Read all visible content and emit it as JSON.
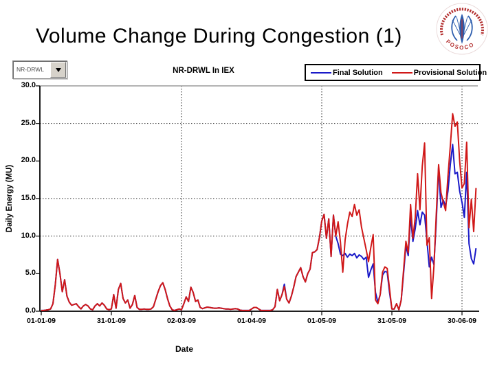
{
  "slide": {
    "title": "Volume Change During Congestion (1)"
  },
  "logo": {
    "name": "posoco-logo",
    "bottom_text": "POSOCO",
    "red": "#b43232",
    "blue": "#2b5cad"
  },
  "controls": {
    "dropdown_value": "NR-DRWL"
  },
  "chart_data": {
    "type": "line",
    "title": "NR-DRWL In IEX",
    "xlabel": "Date",
    "ylabel": "Daily Energy (MU)",
    "ylim": [
      0,
      30
    ],
    "y_ticks": [
      0,
      5,
      10,
      15,
      20,
      25,
      30
    ],
    "x_tick_labels": [
      "01-01-09",
      "31-01-09",
      "02-03-09",
      "01-04-09",
      "01-05-09",
      "31-05-09",
      "30-06-09"
    ],
    "x_tick_days": [
      0,
      30,
      60,
      90,
      120,
      150,
      180
    ],
    "x_range_days": [
      0,
      186
    ],
    "grid": "partial-dotted",
    "h_gridlines_at": [
      10,
      15,
      25
    ],
    "v_gridlines_at_days": [
      60,
      120,
      180
    ],
    "legend_position": "top-right",
    "series": [
      {
        "name": "Final Solution",
        "color": "#1a1ac8",
        "values": [
          0.1,
          0.1,
          0.15,
          0.2,
          0.3,
          1.0,
          3.5,
          6.9,
          5.0,
          2.6,
          4.2,
          2.0,
          1.2,
          0.8,
          0.9,
          1.0,
          0.6,
          0.3,
          0.7,
          0.9,
          0.7,
          0.3,
          0.2,
          0.7,
          1.0,
          0.7,
          1.1,
          0.8,
          0.3,
          0.2,
          0.3,
          2.2,
          0.4,
          2.9,
          3.7,
          1.7,
          1.1,
          1.5,
          0.4,
          0.9,
          2.1,
          0.5,
          0.25,
          0.25,
          0.3,
          0.25,
          0.25,
          0.3,
          0.6,
          1.6,
          2.6,
          3.4,
          3.8,
          2.9,
          1.7,
          0.7,
          0.2,
          0.1,
          0.2,
          0.3,
          0.2,
          1.0,
          1.9,
          1.3,
          3.2,
          2.5,
          1.3,
          1.5,
          0.5,
          0.35,
          0.45,
          0.55,
          0.5,
          0.45,
          0.4,
          0.4,
          0.45,
          0.4,
          0.35,
          0.3,
          0.3,
          0.25,
          0.3,
          0.35,
          0.3,
          0.15,
          0.1,
          0.1,
          0.1,
          0.1,
          0.3,
          0.5,
          0.5,
          0.3,
          0.1,
          0.1,
          0.1,
          0.1,
          0.1,
          0.2,
          0.6,
          2.9,
          1.4,
          2.2,
          3.6,
          1.6,
          1.1,
          2.0,
          3.2,
          4.6,
          5.2,
          5.8,
          4.6,
          3.9,
          5.0,
          5.6,
          7.8,
          7.9,
          8.2,
          9.8,
          12.0,
          12.9,
          9.7,
          12.3,
          7.3,
          12.8,
          10.0,
          9.0,
          7.6,
          7.4,
          7.7,
          7.2,
          7.6,
          7.4,
          7.7,
          7.1,
          7.5,
          7.3,
          6.9,
          7.2,
          4.5,
          5.5,
          6.3,
          2.5,
          1.2,
          2.2,
          4.8,
          5.3,
          5.2,
          2.5,
          0.3,
          0.3,
          1.0,
          0.2,
          1.5,
          5.0,
          8.7,
          7.4,
          12.6,
          9.3,
          11.0,
          13.4,
          11.5,
          13.2,
          12.8,
          9.4,
          5.9,
          7.2,
          6.2,
          12.0,
          19.2,
          13.8,
          14.8,
          14.0,
          16.0,
          19.5,
          22.2,
          18.3,
          18.5,
          16.0,
          14.5,
          12.5,
          18.5,
          9.0,
          7.0,
          6.3,
          8.4
        ]
      },
      {
        "name": "Provisional Solution",
        "color": "#d01818",
        "values": [
          0.1,
          0.1,
          0.15,
          0.2,
          0.3,
          1.0,
          3.5,
          6.9,
          5.0,
          2.6,
          4.2,
          2.0,
          1.2,
          0.8,
          0.9,
          1.0,
          0.6,
          0.3,
          0.7,
          0.9,
          0.7,
          0.3,
          0.2,
          0.7,
          1.0,
          0.7,
          1.1,
          0.8,
          0.3,
          0.2,
          0.3,
          2.2,
          0.4,
          2.9,
          3.7,
          1.7,
          1.1,
          1.5,
          0.4,
          0.9,
          2.1,
          0.5,
          0.25,
          0.25,
          0.3,
          0.25,
          0.25,
          0.3,
          0.6,
          1.6,
          2.6,
          3.4,
          3.8,
          2.9,
          1.7,
          0.7,
          0.2,
          0.1,
          0.2,
          0.3,
          0.2,
          1.0,
          1.9,
          1.3,
          3.2,
          2.5,
          1.3,
          1.5,
          0.5,
          0.35,
          0.45,
          0.55,
          0.5,
          0.45,
          0.4,
          0.4,
          0.45,
          0.4,
          0.35,
          0.3,
          0.3,
          0.25,
          0.3,
          0.35,
          0.3,
          0.15,
          0.1,
          0.1,
          0.1,
          0.1,
          0.3,
          0.5,
          0.5,
          0.3,
          0.1,
          0.1,
          0.1,
          0.1,
          0.1,
          0.2,
          0.6,
          2.9,
          1.4,
          2.2,
          3.3,
          1.6,
          1.1,
          2.0,
          3.2,
          4.6,
          5.2,
          5.8,
          4.6,
          3.9,
          5.0,
          5.6,
          7.8,
          7.9,
          8.2,
          9.8,
          12.0,
          12.9,
          9.7,
          12.3,
          7.3,
          12.8,
          10.0,
          11.9,
          9.2,
          5.2,
          9.5,
          11.6,
          13.2,
          12.6,
          14.2,
          12.8,
          13.5,
          11.2,
          9.7,
          8.2,
          6.6,
          8.5,
          10.2,
          1.5,
          1.0,
          2.2,
          5.2,
          5.9,
          5.7,
          3.0,
          0.3,
          0.3,
          1.0,
          0.2,
          1.5,
          5.5,
          9.3,
          7.8,
          14.2,
          9.7,
          12.5,
          18.3,
          13.5,
          19.3,
          22.4,
          8.8,
          9.8,
          1.7,
          6.0,
          13.0,
          19.5,
          15.8,
          14.5,
          13.4,
          18.0,
          22.0,
          26.3,
          24.6,
          25.2,
          20.0,
          16.4,
          17.0,
          22.5,
          11.1,
          14.9,
          10.6,
          16.4
        ]
      }
    ]
  }
}
